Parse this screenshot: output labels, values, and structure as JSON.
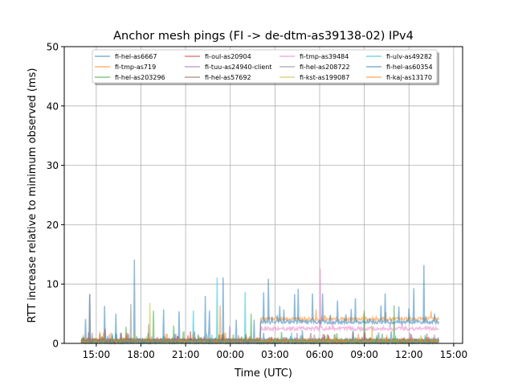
{
  "chart_data": {
    "type": "line",
    "title": "Anchor mesh pings (FI -> de-dtm-as39138-02) IPv4",
    "xlabel": "Time (UTC)",
    "ylabel": "RTT increase relative to minimum observed (ms)",
    "x_units": "hours since 00:00 of first day",
    "xlim": [
      12.85,
      39.6
    ],
    "ylim": [
      0,
      50
    ],
    "x_ticks": [
      {
        "v": 15,
        "label": "15:00"
      },
      {
        "v": 18,
        "label": "18:00"
      },
      {
        "v": 21,
        "label": "21:00"
      },
      {
        "v": 24,
        "label": "00:00"
      },
      {
        "v": 27,
        "label": "03:00"
      },
      {
        "v": 30,
        "label": "06:00"
      },
      {
        "v": 33,
        "label": "09:00"
      },
      {
        "v": 36,
        "label": "12:00"
      },
      {
        "v": 39,
        "label": "15:00"
      }
    ],
    "y_ticks": [
      0,
      10,
      20,
      30,
      40,
      50
    ],
    "grid": true,
    "legend_placement": "top-center",
    "legend_columns": 4,
    "data_range": [
      14.0,
      38.0
    ],
    "series": [
      {
        "name": "fi-hel-as6667",
        "color": "#1f77b4",
        "base": 0.6,
        "steps": [],
        "spikes": [
          [
            14.28,
            4.1
          ],
          [
            14.55,
            8.3
          ],
          [
            15.54,
            6.3
          ],
          [
            16.3,
            5.0
          ],
          [
            17.57,
            14.1
          ],
          [
            19.5,
            5.7
          ],
          [
            20.55,
            5.4
          ],
          [
            22.3,
            8.0
          ],
          [
            22.6,
            5.5
          ],
          [
            23.5,
            11.1
          ],
          [
            24.4,
            4.0
          ],
          [
            25.6,
            4.0
          ]
        ]
      },
      {
        "name": "fi-tmp-as719",
        "color": "#ff7f0e",
        "base": 0.5,
        "steps": [
          [
            26.0,
            4.1
          ]
        ],
        "spikes": []
      },
      {
        "name": "fi-hel-as203296",
        "color": "#2ca02c",
        "base": 0.4,
        "steps": [],
        "spikes": [
          [
            18.85,
            5.5
          ],
          [
            17.0,
            2.8
          ],
          [
            20.2,
            3.0
          ],
          [
            25.4,
            5.0
          ],
          [
            33.0,
            5.5
          ],
          [
            35.0,
            6.4
          ]
        ]
      },
      {
        "name": "fi-oul-as20904",
        "color": "#d62728",
        "base": 0.3,
        "steps": [],
        "spikes": []
      },
      {
        "name": "fi-tuu-as24940-client",
        "color": "#9467bd",
        "base": 0.3,
        "steps": [],
        "spikes": [
          [
            18.5,
            3.2
          ],
          [
            23.95,
            2.9
          ],
          [
            14.7,
            1.8
          ]
        ]
      },
      {
        "name": "fi-hel-as57692",
        "color": "#8c564b",
        "base": 0.4,
        "steps": [],
        "spikes": [
          [
            15.6,
            2.5
          ]
        ]
      },
      {
        "name": "fi-tmp-as39484",
        "color": "#e377c2",
        "base": 0.3,
        "steps": [
          [
            26.0,
            2.5
          ]
        ],
        "spikes": [
          [
            30.05,
            12.6
          ]
        ]
      },
      {
        "name": "fi-hel-as208722",
        "color": "#7f7f7f",
        "base": 0.3,
        "steps": [],
        "spikes": [
          [
            14.55,
            8.3
          ],
          [
            17.3,
            6.6
          ]
        ]
      },
      {
        "name": "fi-kst-as199087",
        "color": "#bcbd22",
        "base": 0.3,
        "steps": [],
        "spikes": [
          [
            18.6,
            6.8
          ],
          [
            33.5,
            3.0
          ]
        ]
      },
      {
        "name": "fi-ulv-as49282",
        "color": "#17becf",
        "base": 0.3,
        "steps": [],
        "spikes": [
          [
            23.1,
            11.1
          ],
          [
            25.0,
            8.7
          ],
          [
            21.5,
            5.5
          ]
        ]
      },
      {
        "name": "fi-hel-as60354",
        "color": "#1f77b4",
        "base": 0.5,
        "steps": [
          [
            26.0,
            3.6
          ]
        ],
        "spikes": [
          [
            26.25,
            8.6
          ],
          [
            26.55,
            10.9
          ],
          [
            27.3,
            6.3
          ],
          [
            27.6,
            5.7
          ],
          [
            28.3,
            8.3
          ],
          [
            28.55,
            9.2
          ],
          [
            29.5,
            8.4
          ],
          [
            30.2,
            8.4
          ],
          [
            30.7,
            4.8
          ],
          [
            31.2,
            7.2
          ],
          [
            32.1,
            5.8
          ],
          [
            32.4,
            7.6
          ],
          [
            34.1,
            6.4
          ],
          [
            34.4,
            8.4
          ],
          [
            35.3,
            6.2
          ],
          [
            36.0,
            5.9
          ],
          [
            36.3,
            9.3
          ],
          [
            37.0,
            13.2
          ]
        ]
      },
      {
        "name": "fi-kaj-as13170",
        "color": "#ff7f0e",
        "base": 0.5,
        "steps": [],
        "spikes": [
          [
            23.3,
            6.4
          ]
        ]
      }
    ]
  }
}
